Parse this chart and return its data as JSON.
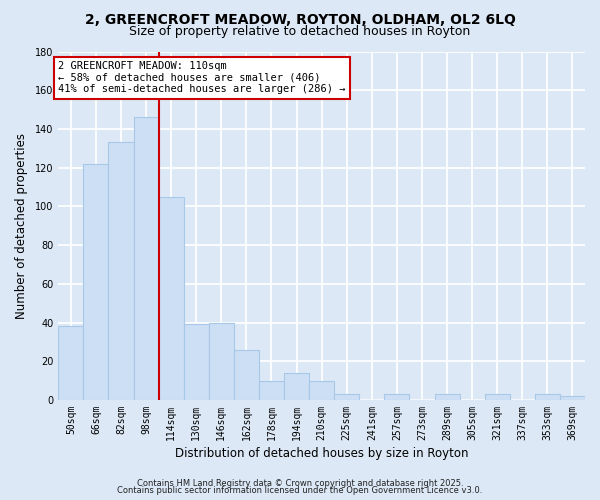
{
  "title_line1": "2, GREENCROFT MEADOW, ROYTON, OLDHAM, OL2 6LQ",
  "title_line2": "Size of property relative to detached houses in Royton",
  "xlabel": "Distribution of detached houses by size in Royton",
  "ylabel": "Number of detached properties",
  "bar_labels": [
    "50sqm",
    "66sqm",
    "82sqm",
    "98sqm",
    "114sqm",
    "130sqm",
    "146sqm",
    "162sqm",
    "178sqm",
    "194sqm",
    "210sqm",
    "225sqm",
    "241sqm",
    "257sqm",
    "273sqm",
    "289sqm",
    "305sqm",
    "321sqm",
    "337sqm",
    "353sqm",
    "369sqm"
  ],
  "bar_values": [
    38,
    122,
    133,
    146,
    105,
    39,
    40,
    26,
    10,
    14,
    10,
    3,
    0,
    3,
    0,
    3,
    0,
    3,
    0,
    3,
    2
  ],
  "bar_color": "#ccdff5",
  "bar_edge_color": "#a8c8e8",
  "vline_color": "#cc0000",
  "annotation_title": "2 GREENCROFT MEADOW: 110sqm",
  "annotation_line1": "← 58% of detached houses are smaller (406)",
  "annotation_line2": "41% of semi-detached houses are larger (286) →",
  "annotation_box_color": "white",
  "annotation_box_edge": "#cc0000",
  "ylim": [
    0,
    180
  ],
  "yticks": [
    0,
    20,
    40,
    60,
    80,
    100,
    120,
    140,
    160,
    180
  ],
  "footer_line1": "Contains HM Land Registry data © Crown copyright and database right 2025.",
  "footer_line2": "Contains public sector information licensed under the Open Government Licence v3.0.",
  "background_color": "#dce8f5",
  "grid_color": "white",
  "title_fontsize": 10,
  "subtitle_fontsize": 9,
  "axis_label_fontsize": 8.5,
  "tick_fontsize": 7,
  "annotation_fontsize": 7.5,
  "footer_fontsize": 6
}
